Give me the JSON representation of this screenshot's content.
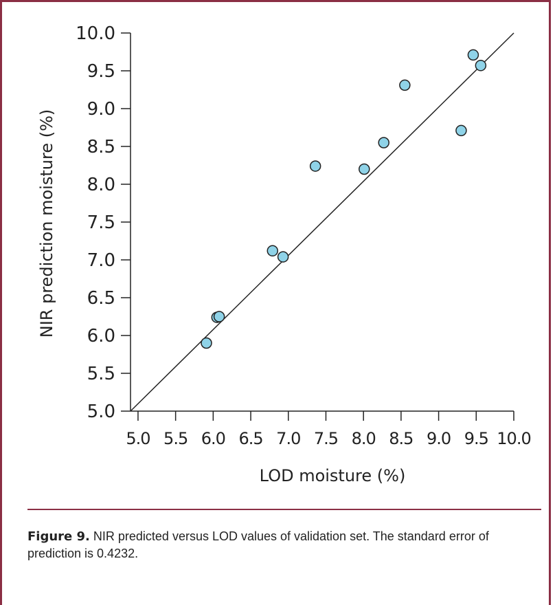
{
  "chart_data": {
    "type": "scatter",
    "xlabel": "LOD moisture (%)",
    "ylabel": "NIR prediction moisture (%)",
    "xlim": [
      4.9,
      10.0
    ],
    "ylim": [
      5.0,
      10.0
    ],
    "x_ticks": [
      "5.0",
      "5.5",
      "6.0",
      "6.5",
      "7.0",
      "7.5",
      "8.0",
      "8.5",
      "9.0",
      "9.5",
      "10.0"
    ],
    "y_ticks": [
      "5.0",
      "5.5",
      "6.0",
      "6.5",
      "7.0",
      "7.5",
      "8.0",
      "8.5",
      "9.0",
      "9.5",
      "10.0"
    ],
    "points": [
      {
        "x": 5.91,
        "y": 5.9
      },
      {
        "x": 6.05,
        "y": 6.24
      },
      {
        "x": 6.08,
        "y": 6.25
      },
      {
        "x": 6.79,
        "y": 7.12
      },
      {
        "x": 6.93,
        "y": 7.04
      },
      {
        "x": 7.36,
        "y": 8.24
      },
      {
        "x": 8.01,
        "y": 8.2
      },
      {
        "x": 8.27,
        "y": 8.55
      },
      {
        "x": 8.55,
        "y": 9.31
      },
      {
        "x": 9.3,
        "y": 8.71
      },
      {
        "x": 9.46,
        "y": 9.71
      },
      {
        "x": 9.56,
        "y": 9.57
      }
    ],
    "reference_line": {
      "from": [
        4.9,
        5.0
      ],
      "to": [
        10.0,
        10.0
      ]
    },
    "grid": false,
    "point_color": "#8fd3e8",
    "point_edge_color": "#222222"
  },
  "caption": {
    "label": "Figure 9.",
    "text": " NIR predicted versus LOD values of validation set.  The standard error of prediction is 0.4232."
  },
  "colors": {
    "frame": "#8b2f45"
  }
}
